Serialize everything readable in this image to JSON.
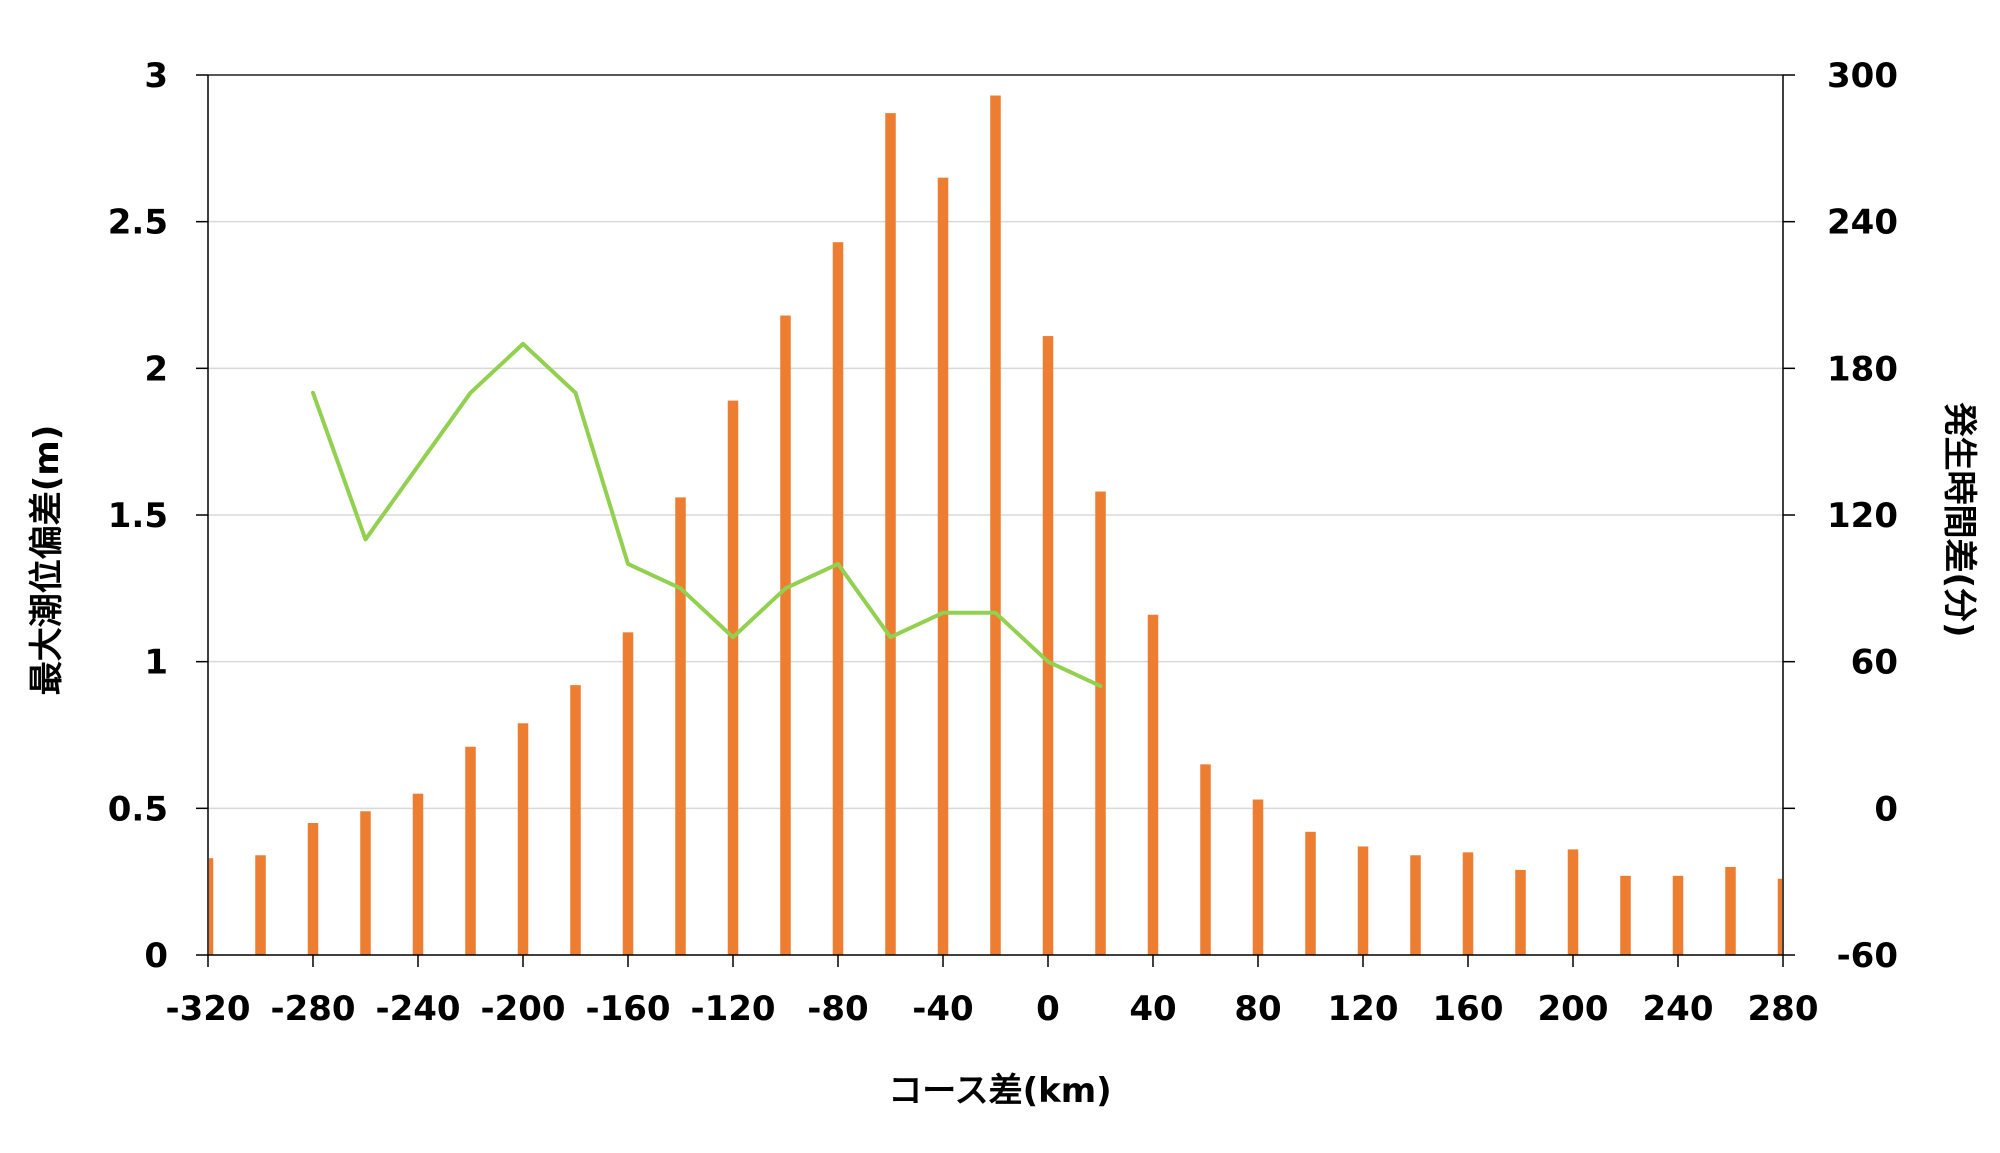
{
  "chart_data": {
    "type": "bar",
    "title": "",
    "xlabel": "コース差(km)",
    "ylabel": "最大潮位偏差(m)",
    "y2label": "発生時間差(分)",
    "x_ticks": [
      "-320",
      "-280",
      "-240",
      "-200",
      "-160",
      "-120",
      "-80",
      "-40",
      "0",
      "40",
      "80",
      "120",
      "160",
      "200",
      "240",
      "280"
    ],
    "y_ticks": [
      "0",
      "0.5",
      "1",
      "1.5",
      "2",
      "2.5",
      "3"
    ],
    "y2_ticks": [
      "-60",
      "0",
      "60",
      "120",
      "180",
      "240",
      "300"
    ],
    "xlim": [
      -320,
      280
    ],
    "ylim": [
      0,
      3
    ],
    "y2lim": [
      -60,
      300
    ],
    "grid": true,
    "legend": "none",
    "colors": {
      "bars": "#ED7D31",
      "line": "#92D050",
      "grid": "#D9D9D9",
      "axis": "#000000"
    },
    "series": [
      {
        "type": "bar",
        "axis": "left",
        "x": [
          -320,
          -300,
          -280,
          -260,
          -240,
          -220,
          -200,
          -180,
          -160,
          -140,
          -120,
          -100,
          -80,
          -60,
          -40,
          -20,
          0,
          20,
          40,
          60,
          80,
          100,
          120,
          140,
          160,
          180,
          200,
          220,
          240,
          260,
          280
        ],
        "values": [
          0.33,
          0.34,
          0.45,
          0.49,
          0.55,
          0.71,
          0.79,
          0.92,
          1.1,
          1.56,
          1.89,
          2.18,
          2.43,
          2.87,
          2.65,
          2.93,
          2.11,
          1.58,
          1.16,
          0.65,
          0.53,
          0.42,
          0.37,
          0.34,
          0.35,
          0.29,
          0.36,
          0.27,
          0.27,
          0.3,
          0.26
        ]
      },
      {
        "type": "line",
        "axis": "right",
        "x": [
          -280,
          -260,
          -240,
          -220,
          -200,
          -180,
          -160,
          -140,
          -120,
          -100,
          -80,
          -60,
          -40,
          -20,
          0,
          20
        ],
        "values": [
          170,
          110,
          140,
          170,
          190,
          170,
          100,
          90,
          70,
          90,
          100,
          70,
          80,
          80,
          60,
          50
        ]
      }
    ]
  }
}
